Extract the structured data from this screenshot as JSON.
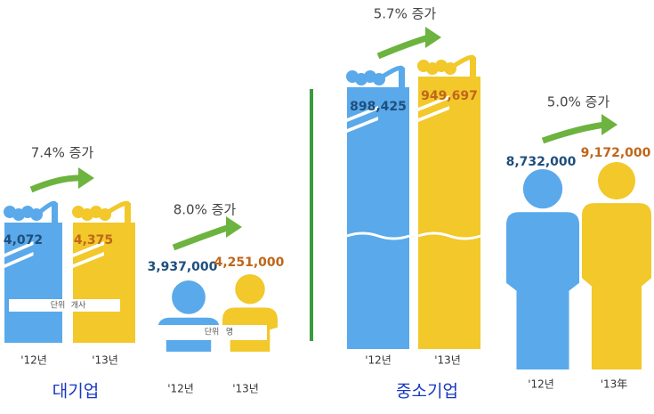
{
  "large_enterprise": {
    "title": "대기업",
    "companies": {
      "increase": "7.4% 증가",
      "values": [
        "4,072",
        "4,375"
      ],
      "unit_label": "단위",
      "unit": "개사",
      "years": [
        "'12년",
        "'13년"
      ]
    },
    "employees": {
      "increase": "8.0% 증가",
      "values": [
        "3,937,000",
        "4,251,000"
      ],
      "unit_label": "단위",
      "unit": "명",
      "years": [
        "'12년",
        "'13년"
      ]
    }
  },
  "sme": {
    "title": "중소기업",
    "companies": {
      "increase": "5.7% 증가",
      "values": [
        "898,425",
        "949,697"
      ],
      "years": [
        "'12년",
        "'13년"
      ]
    },
    "employees": {
      "increase": "5.0% 증가",
      "values": [
        "8,732,000",
        "9,172,000"
      ],
      "years": [
        "'12년",
        "'13年"
      ]
    }
  }
}
